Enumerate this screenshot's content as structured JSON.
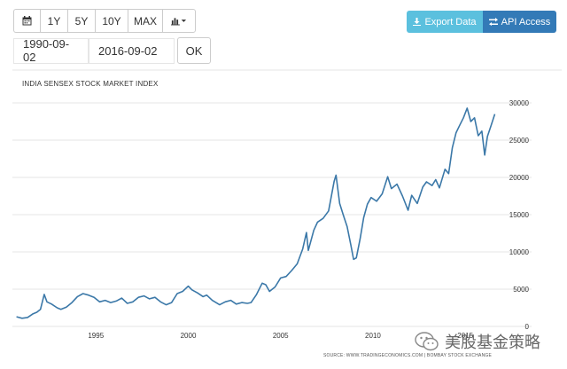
{
  "toolbar": {
    "calendar_icon": "calendar-icon",
    "range_buttons": [
      "1Y",
      "5Y",
      "10Y",
      "MAX"
    ],
    "chart_type_icon": "bar-chart-icon"
  },
  "dates": {
    "start": "1990-09-02",
    "end": "2016-09-02",
    "ok_label": "OK"
  },
  "actions": {
    "export_label": "Export Data",
    "api_label": "API Access"
  },
  "colors": {
    "line": "#3b78a8",
    "export_bg": "#5bc0de",
    "api_bg": "#337ab7"
  },
  "source": "SOURCE: WWW.TRADINGECONOMICS.COM | BOMBAY STOCK EXCHANGE",
  "watermark": "美股基金策略",
  "chart_data": {
    "type": "line",
    "title": "INDIA SENSEX STOCK MARKET INDEX",
    "xlabel": "",
    "ylabel": "",
    "xlim": [
      1990.67,
      2016.67
    ],
    "ylim": [
      0,
      30000
    ],
    "xticks": [
      1995,
      2000,
      2005,
      2010,
      2015
    ],
    "yticks": [
      0,
      5000,
      10000,
      15000,
      20000,
      25000,
      30000
    ],
    "y_axis_position": "right",
    "grid": "horizontal",
    "series": [
      {
        "name": "",
        "points": [
          [
            1990.7,
            1300
          ],
          [
            1991.0,
            1100
          ],
          [
            1991.3,
            1200
          ],
          [
            1991.6,
            1700
          ],
          [
            1991.8,
            1900
          ],
          [
            1992.0,
            2300
          ],
          [
            1992.2,
            4300
          ],
          [
            1992.35,
            3300
          ],
          [
            1992.6,
            3000
          ],
          [
            1992.9,
            2500
          ],
          [
            1993.1,
            2300
          ],
          [
            1993.4,
            2600
          ],
          [
            1993.7,
            3200
          ],
          [
            1994.0,
            4000
          ],
          [
            1994.3,
            4400
          ],
          [
            1994.6,
            4200
          ],
          [
            1994.9,
            3900
          ],
          [
            1995.2,
            3300
          ],
          [
            1995.5,
            3500
          ],
          [
            1995.8,
            3200
          ],
          [
            1996.1,
            3400
          ],
          [
            1996.4,
            3800
          ],
          [
            1996.7,
            3100
          ],
          [
            1997.0,
            3300
          ],
          [
            1997.3,
            3900
          ],
          [
            1997.6,
            4100
          ],
          [
            1997.9,
            3700
          ],
          [
            1998.2,
            3900
          ],
          [
            1998.5,
            3300
          ],
          [
            1998.8,
            2900
          ],
          [
            1999.1,
            3200
          ],
          [
            1999.4,
            4400
          ],
          [
            1999.7,
            4700
          ],
          [
            2000.0,
            5400
          ],
          [
            2000.2,
            4900
          ],
          [
            2000.5,
            4500
          ],
          [
            2000.8,
            4000
          ],
          [
            2001.0,
            4200
          ],
          [
            2001.3,
            3500
          ],
          [
            2001.7,
            2900
          ],
          [
            2002.0,
            3300
          ],
          [
            2002.3,
            3500
          ],
          [
            2002.6,
            3000
          ],
          [
            2002.9,
            3200
          ],
          [
            2003.2,
            3100
          ],
          [
            2003.4,
            3200
          ],
          [
            2003.7,
            4300
          ],
          [
            2004.0,
            5800
          ],
          [
            2004.2,
            5600
          ],
          [
            2004.4,
            4700
          ],
          [
            2004.7,
            5300
          ],
          [
            2005.0,
            6500
          ],
          [
            2005.3,
            6700
          ],
          [
            2005.6,
            7500
          ],
          [
            2005.9,
            8400
          ],
          [
            2006.2,
            10400
          ],
          [
            2006.4,
            12600
          ],
          [
            2006.5,
            10200
          ],
          [
            2006.8,
            12900
          ],
          [
            2007.0,
            14000
          ],
          [
            2007.3,
            14500
          ],
          [
            2007.6,
            15500
          ],
          [
            2007.9,
            19500
          ],
          [
            2008.0,
            20300
          ],
          [
            2008.2,
            16500
          ],
          [
            2008.4,
            14900
          ],
          [
            2008.6,
            13400
          ],
          [
            2008.8,
            11000
          ],
          [
            2008.95,
            9000
          ],
          [
            2009.1,
            9200
          ],
          [
            2009.3,
            11700
          ],
          [
            2009.5,
            14600
          ],
          [
            2009.7,
            16400
          ],
          [
            2009.9,
            17300
          ],
          [
            2010.2,
            16800
          ],
          [
            2010.5,
            17800
          ],
          [
            2010.8,
            20100
          ],
          [
            2011.0,
            18500
          ],
          [
            2011.3,
            19100
          ],
          [
            2011.6,
            17500
          ],
          [
            2011.9,
            15600
          ],
          [
            2012.1,
            17600
          ],
          [
            2012.4,
            16500
          ],
          [
            2012.7,
            18700
          ],
          [
            2012.9,
            19400
          ],
          [
            2013.2,
            18900
          ],
          [
            2013.4,
            19700
          ],
          [
            2013.6,
            18600
          ],
          [
            2013.9,
            21100
          ],
          [
            2014.1,
            20500
          ],
          [
            2014.3,
            24000
          ],
          [
            2014.5,
            26000
          ],
          [
            2014.7,
            27000
          ],
          [
            2014.9,
            28000
          ],
          [
            2015.1,
            29300
          ],
          [
            2015.3,
            27500
          ],
          [
            2015.5,
            28000
          ],
          [
            2015.7,
            25600
          ],
          [
            2015.9,
            26200
          ],
          [
            2016.05,
            23000
          ],
          [
            2016.2,
            25500
          ],
          [
            2016.4,
            27000
          ],
          [
            2016.6,
            28500
          ]
        ]
      }
    ]
  }
}
